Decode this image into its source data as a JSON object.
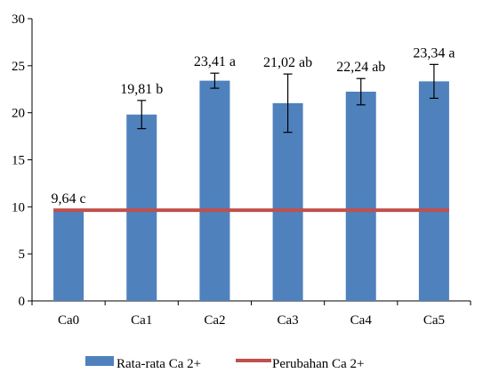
{
  "chart_data": {
    "type": "bar",
    "categories": [
      "Ca0",
      "Ca1",
      "Ca2",
      "Ca3",
      "Ca4",
      "Ca5"
    ],
    "series": [
      {
        "name": "Rata-rata Ca 2+",
        "type": "bar",
        "values": [
          9.64,
          19.81,
          23.41,
          21.02,
          22.24,
          23.34
        ],
        "error": [
          0,
          1.5,
          0.8,
          3.1,
          1.4,
          1.8
        ],
        "data_labels": [
          "9,64 c",
          "19,81 b",
          "23,41 a",
          "21,02 ab",
          "22,24 ab",
          "23,34 a"
        ],
        "color": "#4f81bd"
      },
      {
        "name": "Perubahan Ca 2+",
        "type": "line",
        "values": [
          9.64,
          9.64,
          9.64,
          9.64,
          9.64,
          9.64
        ],
        "color": "#c0504d"
      }
    ],
    "y_ticks": [
      "0",
      "5",
      "10",
      "15",
      "20",
      "25",
      "30"
    ],
    "ylim": [
      0,
      30
    ],
    "title": "",
    "xlabel": "",
    "ylabel": "",
    "grid": false,
    "legend_position": "bottom"
  }
}
